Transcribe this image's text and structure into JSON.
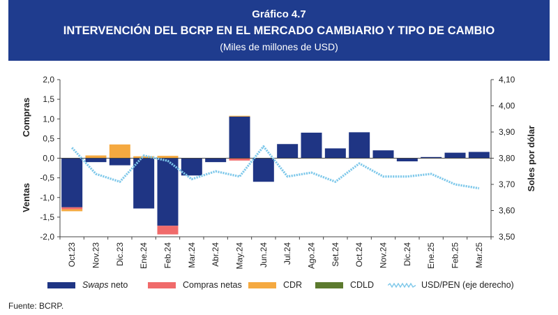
{
  "header": {
    "kicker": "Gráfico 4.7",
    "title": "INTERVENCIÓN DEL BCRP EN EL MERCADO CAMBIARIO Y TIPO DE CAMBIO",
    "subtitle": "(Miles de millones de USD)"
  },
  "source": "Fuente: BCRP.",
  "colors": {
    "header_bg": "#1f3c8e",
    "swaps": "#1f3584",
    "compras": "#f06a6a",
    "cdr": "#f5a940",
    "cdld": "#5c7a2e",
    "usdpen": "#7ec8ea"
  },
  "chart_data": {
    "type": "bar",
    "categories": [
      "Oct.23",
      "Nov.23",
      "Dic.23",
      "Ene.24",
      "Feb.24",
      "Mar.24",
      "Abr.24",
      "May.24",
      "Jun.24",
      "Jul.24",
      "Ago.24",
      "Set.24",
      "Oct.24",
      "Nov.24",
      "Dic.24",
      "Ene.25",
      "Feb.25",
      "Mar.25"
    ],
    "series": [
      {
        "name": "Swaps neto",
        "axis": "left",
        "values": [
          -1.25,
          -0.1,
          -0.18,
          -1.28,
          -1.72,
          -0.44,
          -0.1,
          1.06,
          -0.6,
          0.36,
          0.65,
          0.25,
          0.66,
          0.2,
          -0.08,
          0.03,
          0.14,
          0.16
        ]
      },
      {
        "name": "Compras netas",
        "axis": "left",
        "values": [
          -0.05,
          0,
          0,
          0,
          -0.22,
          0,
          0,
          -0.06,
          0,
          0,
          0,
          0,
          0,
          0,
          0,
          0,
          0,
          0
        ]
      },
      {
        "name": "CDR",
        "axis": "left",
        "values": [
          -0.05,
          0.07,
          0.35,
          0.05,
          0.06,
          0,
          0,
          0.02,
          0,
          0,
          0,
          0,
          0,
          0,
          0,
          0,
          0,
          0
        ]
      },
      {
        "name": "CDLD",
        "axis": "left",
        "values": [
          0,
          0,
          0,
          0,
          0,
          0,
          0,
          0,
          0,
          0,
          0,
          0,
          0,
          0,
          0,
          0,
          0,
          0
        ]
      },
      {
        "name": "USD/PEN (eje derecho)",
        "axis": "right",
        "type": "line",
        "values": [
          3.84,
          3.74,
          3.71,
          3.81,
          3.79,
          3.72,
          3.75,
          3.73,
          3.845,
          3.73,
          3.745,
          3.71,
          3.78,
          3.73,
          3.73,
          3.74,
          3.7,
          3.685
        ]
      }
    ],
    "legend": [
      {
        "label": "Swaps",
        "suffix": " neto",
        "italic": true
      },
      {
        "label": "Compras netas"
      },
      {
        "label": "CDR"
      },
      {
        "label": "CDLD"
      },
      {
        "label": "USD/PEN (eje derecho)"
      }
    ],
    "y_left": {
      "min": -2.0,
      "max": 2.0,
      "ticks": [
        "2,0",
        "1,5",
        "1,0",
        "0,5",
        "0,0",
        "-0,5",
        "-1,0",
        "-1,5",
        "-2,0"
      ],
      "label_top": "Compras",
      "label_bottom": "Ventas"
    },
    "y_right": {
      "min": 3.5,
      "max": 4.1,
      "ticks": [
        "4,10",
        "4,00",
        "3,90",
        "3,80",
        "3,70",
        "3,60",
        "3,50"
      ],
      "label": "Soles por dólar"
    },
    "legend_position": "bottom",
    "grid": false
  }
}
